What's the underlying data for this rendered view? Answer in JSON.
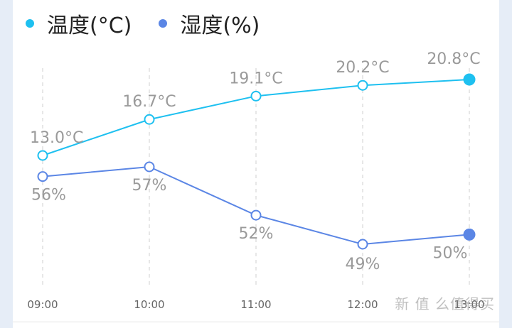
{
  "chart_data": {
    "type": "line",
    "categories": [
      "09:00",
      "10:00",
      "11:00",
      "12:00",
      "13:00"
    ],
    "series": [
      {
        "name": "温度(°C)",
        "color": "#1ec0f0",
        "values": [
          13.0,
          16.7,
          19.1,
          20.2,
          20.8
        ],
        "labels": [
          "13.0°C",
          "16.7°C",
          "19.1°C",
          "20.2°C",
          "20.8°C"
        ]
      },
      {
        "name": "湿度(%)",
        "color": "#5b86e5",
        "values": [
          56,
          57,
          52,
          49,
          50
        ],
        "labels": [
          "56%",
          "57%",
          "52%",
          "49%",
          "50%"
        ]
      }
    ],
    "grid": "vertical-dashed",
    "legend_position": "top-left"
  },
  "watermark": "新 值 么值得买"
}
